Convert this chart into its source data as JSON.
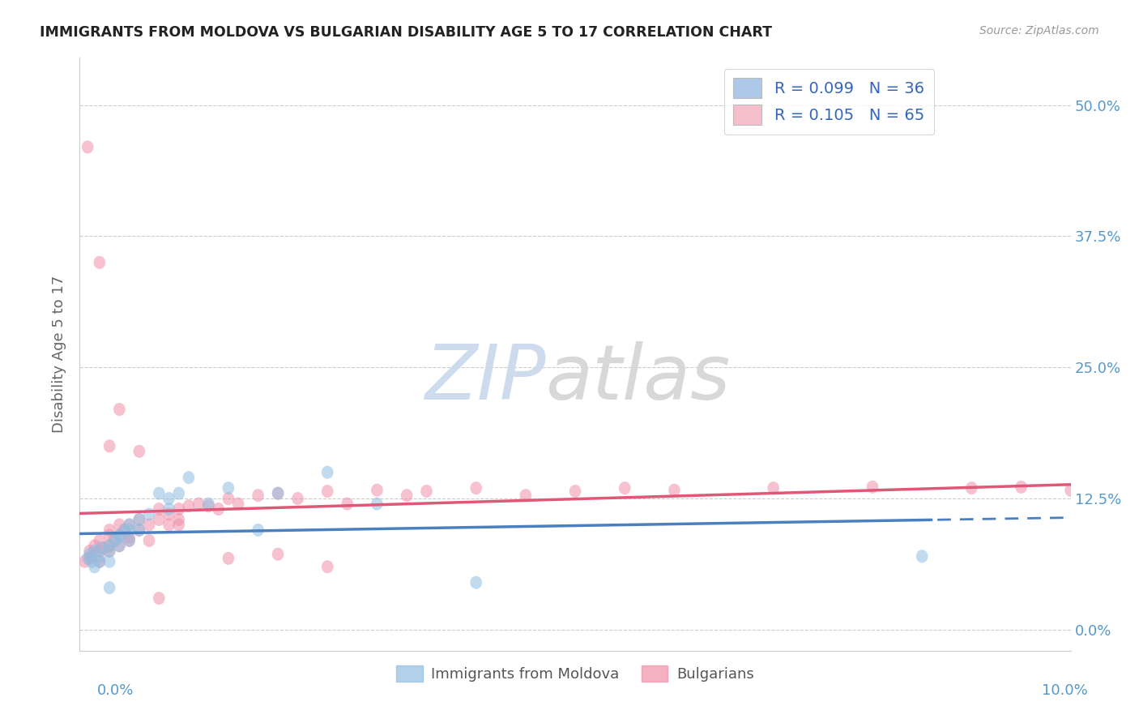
{
  "title": "IMMIGRANTS FROM MOLDOVA VS BULGARIAN DISABILITY AGE 5 TO 17 CORRELATION CHART",
  "source": "Source: ZipAtlas.com",
  "ylabel": "Disability Age 5 to 17",
  "yticks_labels": [
    "0.0%",
    "12.5%",
    "25.0%",
    "37.5%",
    "50.0%"
  ],
  "ytick_vals": [
    0.0,
    0.125,
    0.25,
    0.375,
    0.5
  ],
  "xlim": [
    0.0,
    0.1
  ],
  "ylim": [
    -0.02,
    0.545
  ],
  "legend_r1_text": "R = 0.099   N = 36",
  "legend_r2_text": "R = 0.105   N = 65",
  "legend_color1": "#adc8e8",
  "legend_color2": "#f5bfcc",
  "color_moldova": "#90bde0",
  "color_bulgarian": "#f090a8",
  "trendline_moldova_color": "#4a7fc0",
  "trendline_bulgarian_color": "#e05878",
  "grid_color": "#cccccc",
  "background_color": "#ffffff",
  "tick_color": "#5599cc",
  "ylabel_color": "#666666",
  "title_color": "#222222",
  "source_color": "#999999",
  "moldova_x": [
    0.0008,
    0.001,
    0.0012,
    0.0015,
    0.0015,
    0.002,
    0.002,
    0.0022,
    0.003,
    0.003,
    0.003,
    0.0035,
    0.004,
    0.004,
    0.004,
    0.0045,
    0.005,
    0.005,
    0.005,
    0.006,
    0.006,
    0.007,
    0.008,
    0.009,
    0.009,
    0.01,
    0.011,
    0.013,
    0.015,
    0.018,
    0.02,
    0.025,
    0.03,
    0.04,
    0.085,
    0.003
  ],
  "moldova_y": [
    0.068,
    0.072,
    0.065,
    0.075,
    0.06,
    0.07,
    0.065,
    0.078,
    0.08,
    0.075,
    0.065,
    0.085,
    0.09,
    0.088,
    0.08,
    0.095,
    0.1,
    0.095,
    0.085,
    0.105,
    0.095,
    0.11,
    0.13,
    0.115,
    0.125,
    0.13,
    0.145,
    0.12,
    0.135,
    0.095,
    0.13,
    0.15,
    0.12,
    0.045,
    0.07,
    0.04
  ],
  "bulgarian_x": [
    0.0005,
    0.001,
    0.001,
    0.0012,
    0.0015,
    0.002,
    0.002,
    0.002,
    0.0025,
    0.003,
    0.003,
    0.003,
    0.003,
    0.0035,
    0.004,
    0.004,
    0.004,
    0.0045,
    0.005,
    0.005,
    0.005,
    0.006,
    0.006,
    0.007,
    0.007,
    0.008,
    0.008,
    0.009,
    0.009,
    0.01,
    0.01,
    0.011,
    0.012,
    0.013,
    0.014,
    0.015,
    0.016,
    0.018,
    0.02,
    0.022,
    0.025,
    0.027,
    0.03,
    0.033,
    0.035,
    0.04,
    0.045,
    0.05,
    0.055,
    0.06,
    0.07,
    0.08,
    0.09,
    0.095,
    0.1,
    0.0008,
    0.002,
    0.004,
    0.003,
    0.006,
    0.01,
    0.015,
    0.02,
    0.025,
    0.008
  ],
  "bulgarian_y": [
    0.065,
    0.068,
    0.075,
    0.07,
    0.08,
    0.075,
    0.065,
    0.085,
    0.078,
    0.08,
    0.09,
    0.075,
    0.095,
    0.085,
    0.09,
    0.1,
    0.08,
    0.095,
    0.1,
    0.088,
    0.085,
    0.095,
    0.105,
    0.1,
    0.085,
    0.105,
    0.115,
    0.1,
    0.11,
    0.115,
    0.105,
    0.118,
    0.12,
    0.118,
    0.115,
    0.125,
    0.12,
    0.128,
    0.13,
    0.125,
    0.132,
    0.12,
    0.133,
    0.128,
    0.132,
    0.135,
    0.128,
    0.132,
    0.135,
    0.133,
    0.135,
    0.136,
    0.135,
    0.136,
    0.133,
    0.46,
    0.35,
    0.21,
    0.175,
    0.17,
    0.1,
    0.068,
    0.072,
    0.06,
    0.03
  ]
}
